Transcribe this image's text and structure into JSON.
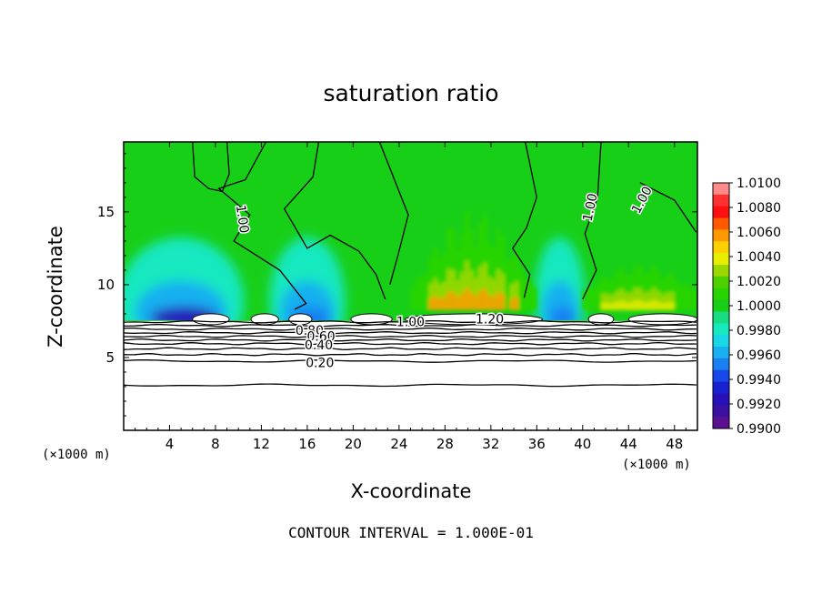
{
  "chart_data": {
    "type": "heatmap",
    "title": "saturation ratio",
    "xlabel": "X-coordinate",
    "ylabel": "Z-coordinate",
    "x_unit": "(×1000 m)",
    "y_unit": "(×1000 m)",
    "xlim": [
      0,
      50
    ],
    "ylim": [
      0,
      19.8
    ],
    "x_ticks": [
      4,
      8,
      12,
      16,
      20,
      24,
      28,
      32,
      36,
      40,
      44,
      48
    ],
    "y_ticks": [
      5,
      10,
      15
    ],
    "footer": "CONTOUR INTERVAL = 1.000E-01",
    "colorbar": {
      "ticks": [
        "1.0100",
        "1.0080",
        "1.0060",
        "1.0040",
        "1.0020",
        "1.0000",
        "0.9980",
        "0.9960",
        "0.9940",
        "0.9920",
        "0.9900"
      ],
      "colors": [
        "#ff8a8a",
        "#ff3030",
        "#ff1010",
        "#ff5a00",
        "#ff9900",
        "#ffd000",
        "#e8ee00",
        "#9ad800",
        "#4ed000",
        "#27d400",
        "#18cf18",
        "#18dc80",
        "#18e8c0",
        "#18d8e8",
        "#18b0f0",
        "#1880f0",
        "#1848e8",
        "#1820d0",
        "#2810b8",
        "#3a10a0",
        "#5a1090"
      ]
    },
    "contour_labels": [
      {
        "text": "1.00",
        "x": 10.3,
        "z": 14.5,
        "angle": 82
      },
      {
        "text": "1.00",
        "x": 40.7,
        "z": 15.3,
        "angle": -78
      },
      {
        "text": "1.00",
        "x": 45.2,
        "z": 15.8,
        "angle": -62
      },
      {
        "text": "1.00",
        "x": 25.0,
        "z": 7.4,
        "angle": 0
      },
      {
        "text": "1.20",
        "x": 31.9,
        "z": 7.6,
        "angle": 0
      },
      {
        "text": "0.80",
        "x": 16.2,
        "z": 6.8,
        "angle": 0
      },
      {
        "text": "0.60",
        "x": 17.2,
        "z": 6.4,
        "angle": 0
      },
      {
        "text": "0.40",
        "x": 17.0,
        "z": 5.8,
        "angle": 0
      },
      {
        "text": "0.20",
        "x": 17.1,
        "z": 4.6,
        "angle": 0
      }
    ],
    "lower_contour_levels": [
      {
        "level": 0.2,
        "z": 4.75
      },
      {
        "level": 0.0,
        "z": 3.1
      }
    ],
    "field_summary": {
      "subsaturated_below_z": 7.5,
      "background_value": 1.0,
      "dry_regions": [
        {
          "x": [
            0,
            10
          ],
          "min": 0.9915
        },
        {
          "x": [
            13,
            19
          ],
          "min": 0.995
        },
        {
          "x": [
            36,
            40
          ],
          "min": 0.995
        }
      ],
      "moist_regions": [
        {
          "x": [
            25,
            36
          ],
          "max": 1.0065
        },
        {
          "x": [
            40,
            50
          ],
          "max": 1.004
        }
      ]
    }
  }
}
